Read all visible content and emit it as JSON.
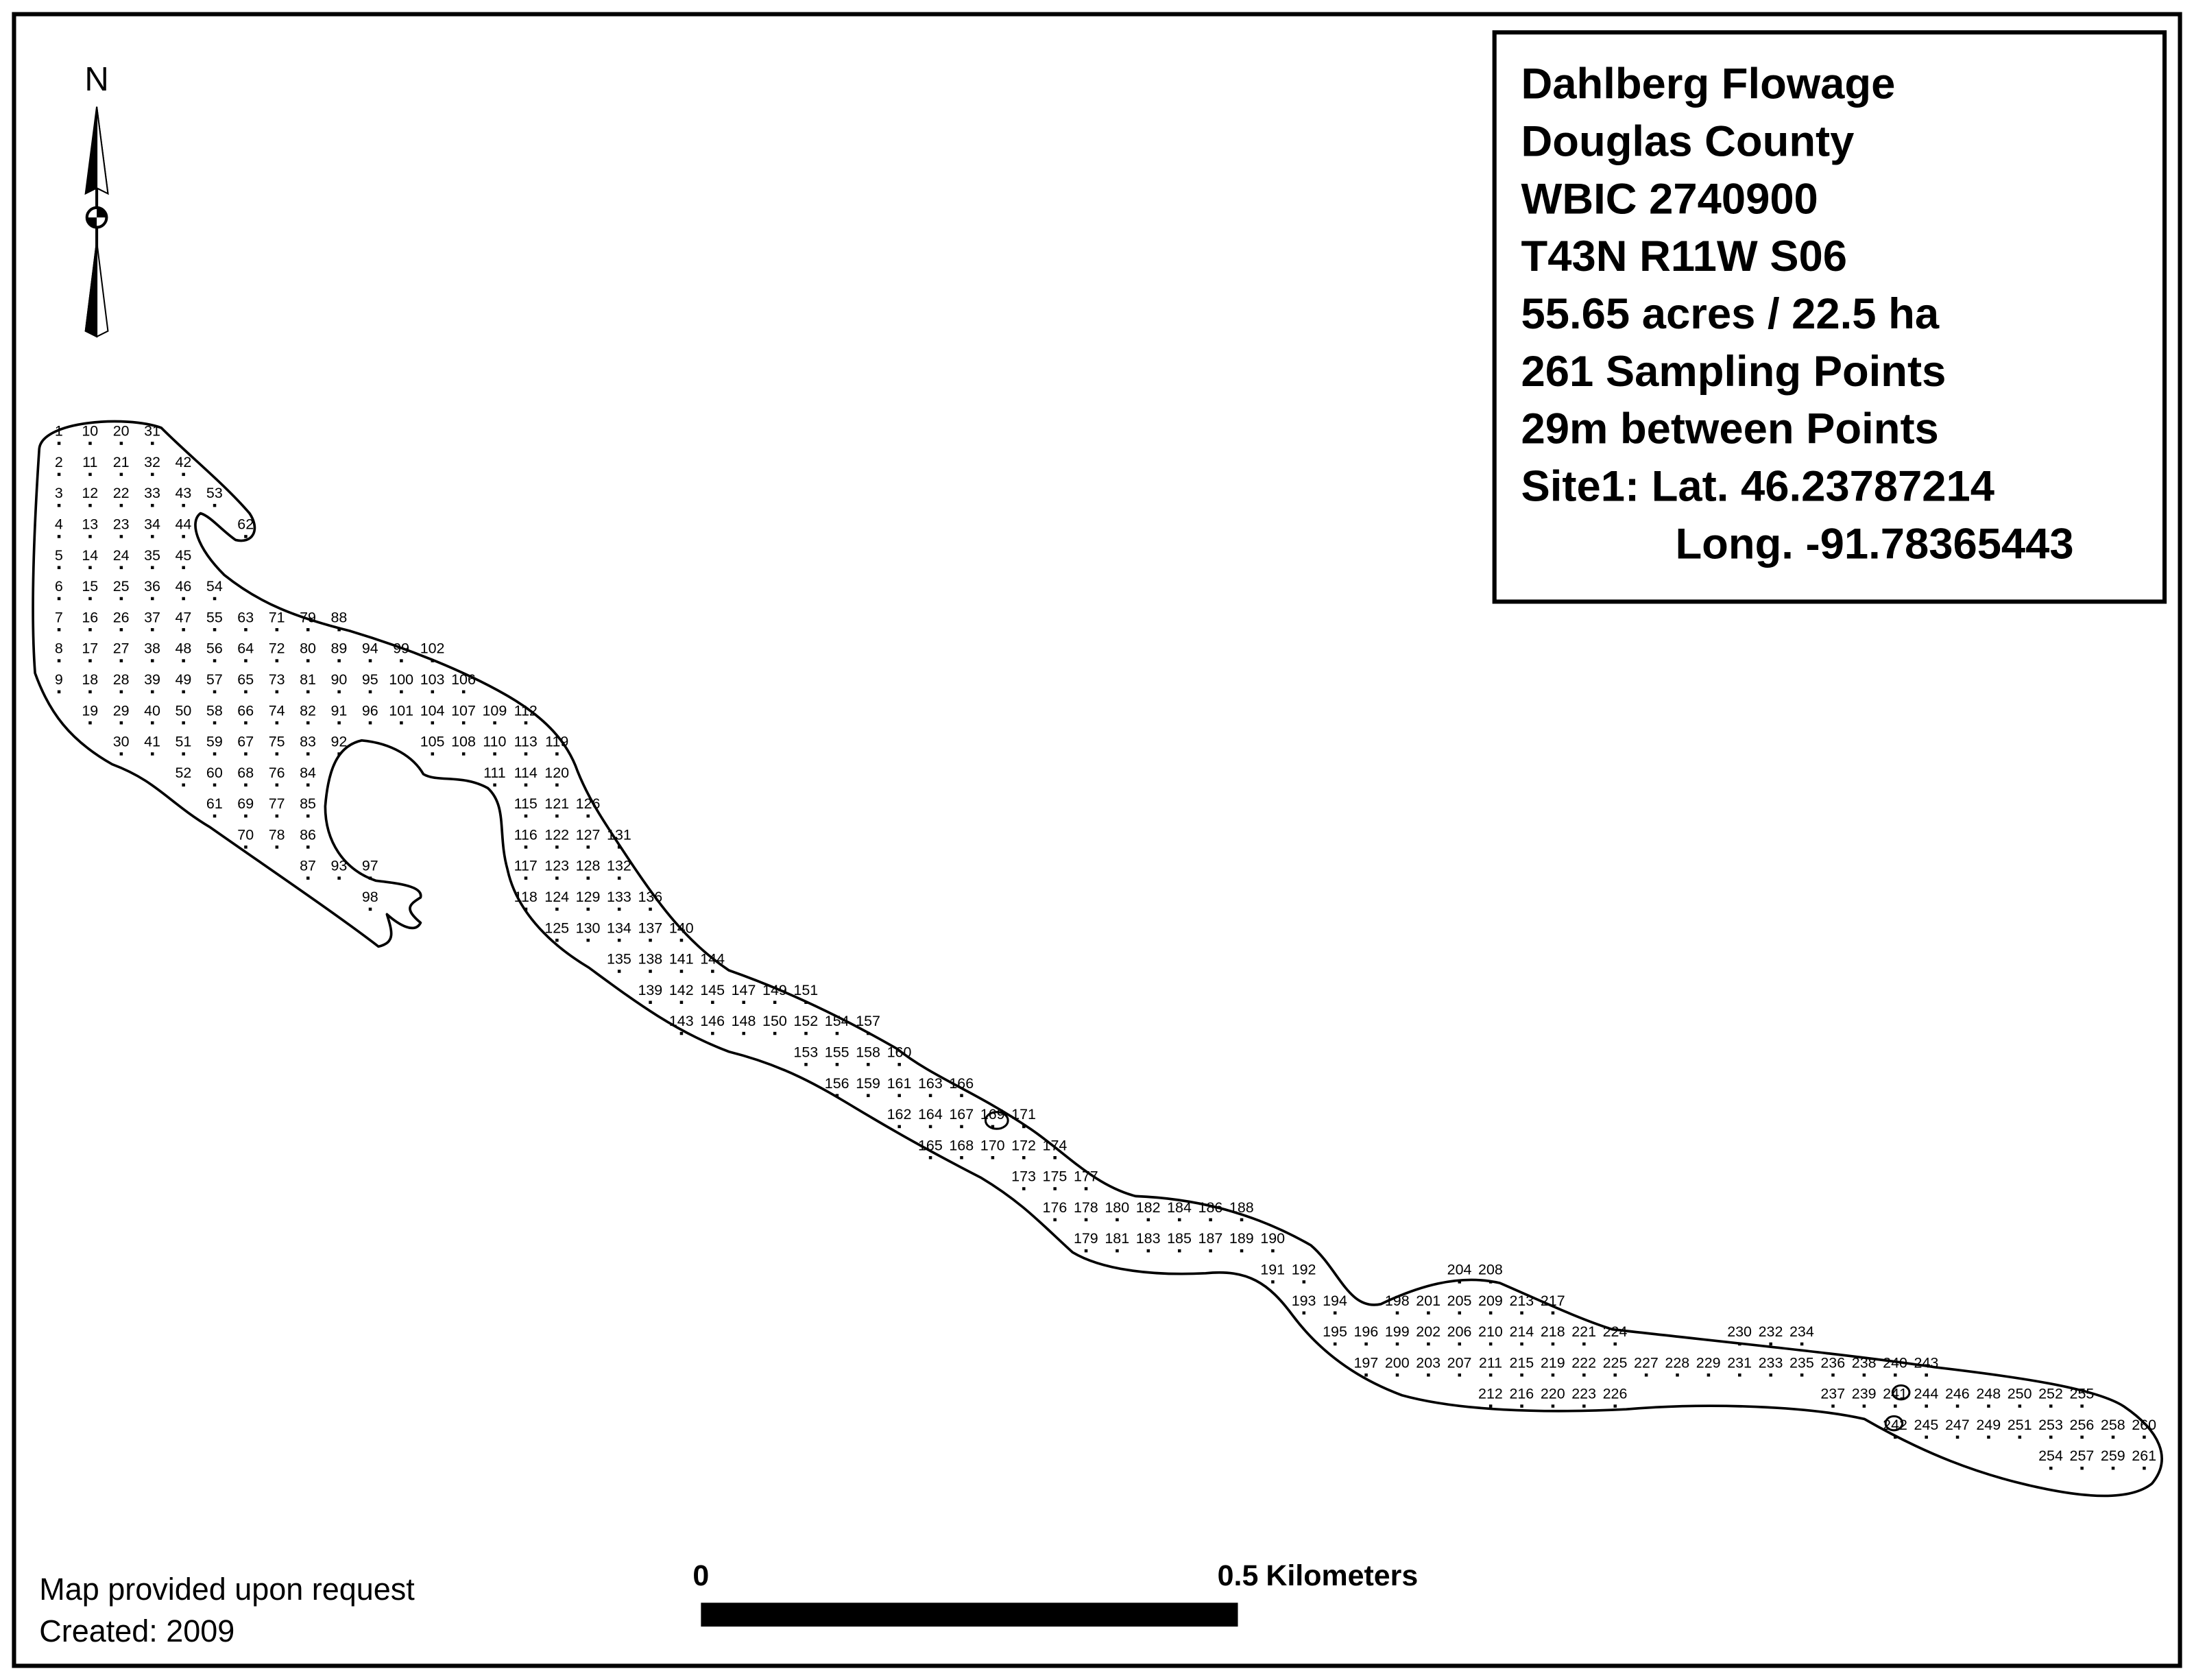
{
  "north_arrow": {
    "label": "N"
  },
  "info_box": {
    "lines": [
      "Dahlberg Flowage",
      "Douglas County",
      "WBIC 2740900",
      "T43N R11W S06",
      "55.65 acres / 22.5 ha",
      "261 Sampling Points",
      "29m between Points",
      "Site1: Lat. 46.23787214",
      "Long. -91.78365443"
    ]
  },
  "sampling_points": {
    "labels": [
      1,
      2,
      3,
      4,
      5,
      6,
      7,
      8,
      9,
      10,
      11,
      12,
      13,
      14,
      15,
      16,
      17,
      18,
      19,
      20,
      21,
      22,
      23,
      24,
      25,
      26,
      27,
      28,
      29,
      30,
      31,
      32,
      33,
      34,
      35,
      36,
      37,
      38,
      39,
      40,
      41,
      42,
      43,
      44,
      45,
      46,
      47,
      48,
      49,
      50,
      51,
      52,
      53,
      54,
      55,
      56,
      57,
      58,
      59,
      60,
      61,
      62,
      63,
      64,
      65,
      66,
      67,
      68,
      69,
      70,
      71,
      72,
      73,
      74,
      75,
      76,
      77,
      78,
      79,
      80,
      81,
      82,
      83,
      84,
      85,
      86,
      87,
      88,
      89,
      90,
      91,
      92,
      93,
      94,
      95,
      96,
      97,
      98,
      99,
      100,
      101,
      102,
      103,
      104,
      105,
      106,
      107,
      108,
      109,
      110,
      111,
      112,
      113,
      114,
      115,
      116,
      117,
      118,
      119,
      120,
      121,
      122,
      123,
      124,
      125,
      126,
      127,
      128,
      129,
      130,
      131,
      132,
      133,
      134,
      135,
      136,
      137,
      138,
      139,
      140,
      141,
      142,
      143,
      144,
      145,
      146,
      147,
      148,
      149,
      150,
      151,
      152,
      153,
      154,
      155,
      156,
      157,
      158,
      159,
      160,
      161,
      162,
      163,
      164,
      165,
      166,
      167,
      168,
      169,
      170,
      171,
      172,
      173,
      174,
      175,
      176,
      177,
      178,
      179,
      180,
      181,
      182,
      183,
      184,
      185,
      186,
      187,
      188,
      189,
      190,
      191,
      192,
      193,
      194,
      195,
      196,
      197,
      198,
      199,
      200,
      201,
      202,
      203,
      204,
      205,
      206,
      207,
      208,
      209,
      210,
      211,
      212,
      213,
      214,
      215,
      216,
      217,
      218,
      219,
      220,
      221,
      222,
      223,
      224,
      225,
      226,
      227,
      228,
      229,
      230,
      231,
      232,
      233,
      234,
      235,
      236,
      237,
      238,
      239,
      240,
      241,
      242,
      243,
      244,
      245,
      246,
      247,
      248,
      249,
      250,
      251,
      252,
      253,
      254,
      255,
      256,
      257,
      258,
      259,
      260,
      261
    ]
  },
  "scale_bar": {
    "start": "0",
    "end": "0.5",
    "unit": "Kilometers"
  },
  "footer": {
    "lines": [
      "Map provided upon request",
      "Created: 2009"
    ]
  }
}
